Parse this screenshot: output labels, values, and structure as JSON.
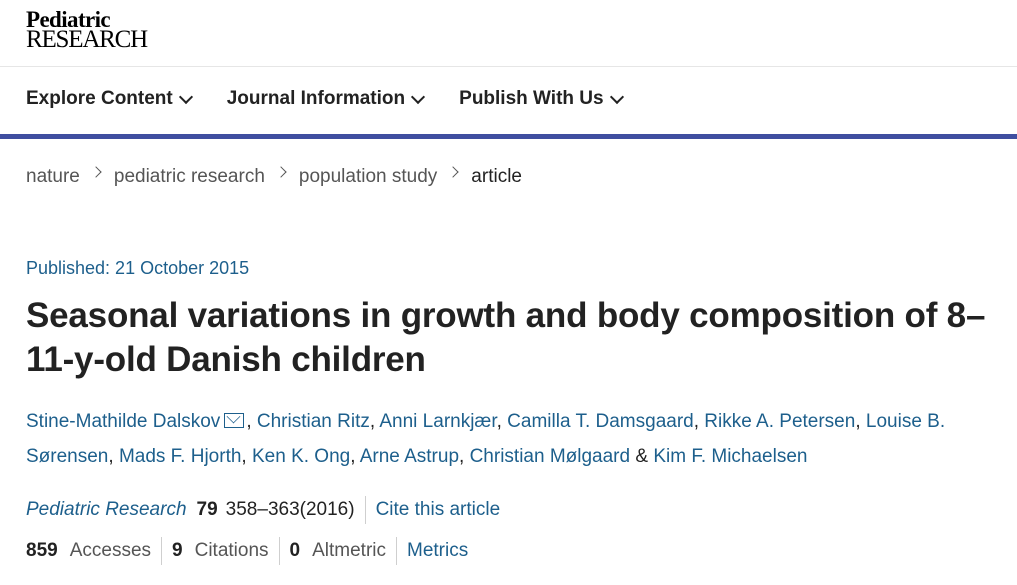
{
  "brand": {
    "line1": "Pediatric",
    "line2": "RESEARCH"
  },
  "nav": {
    "items": [
      {
        "label": "Explore Content"
      },
      {
        "label": "Journal Information"
      },
      {
        "label": "Publish With Us"
      }
    ],
    "accent_color": "#3f4ea0"
  },
  "breadcrumb": [
    "nature",
    "pediatric research",
    "population study",
    "article"
  ],
  "article": {
    "published": "Published: 21 October 2015",
    "title": "Seasonal variations in growth and body composition of 8–11-y-old Danish children",
    "authors": [
      "Stine-Mathilde Dalskov",
      "Christian Ritz",
      "Anni Larnkjær",
      "Camilla T. Damsgaard",
      "Rikke A. Petersen",
      "Louise B. Sørensen",
      "Mads F. Hjorth",
      "Ken K. Ong",
      "Arne Astrup",
      "Christian Mølgaard",
      "Kim F. Michaelsen"
    ],
    "author_separator": ", ",
    "author_last_separator": " & "
  },
  "citation": {
    "journal": "Pediatric Research",
    "volume": "79",
    "pages": "358–363(2016)",
    "cite_label": "Cite this article"
  },
  "metrics": {
    "accesses_count": "859",
    "accesses_label": "Accesses",
    "citations_count": "9",
    "citations_label": "Citations",
    "altmetric_count": "0",
    "altmetric_label": "Altmetric",
    "metrics_label": "Metrics"
  },
  "link_color": "#1d5f8c"
}
